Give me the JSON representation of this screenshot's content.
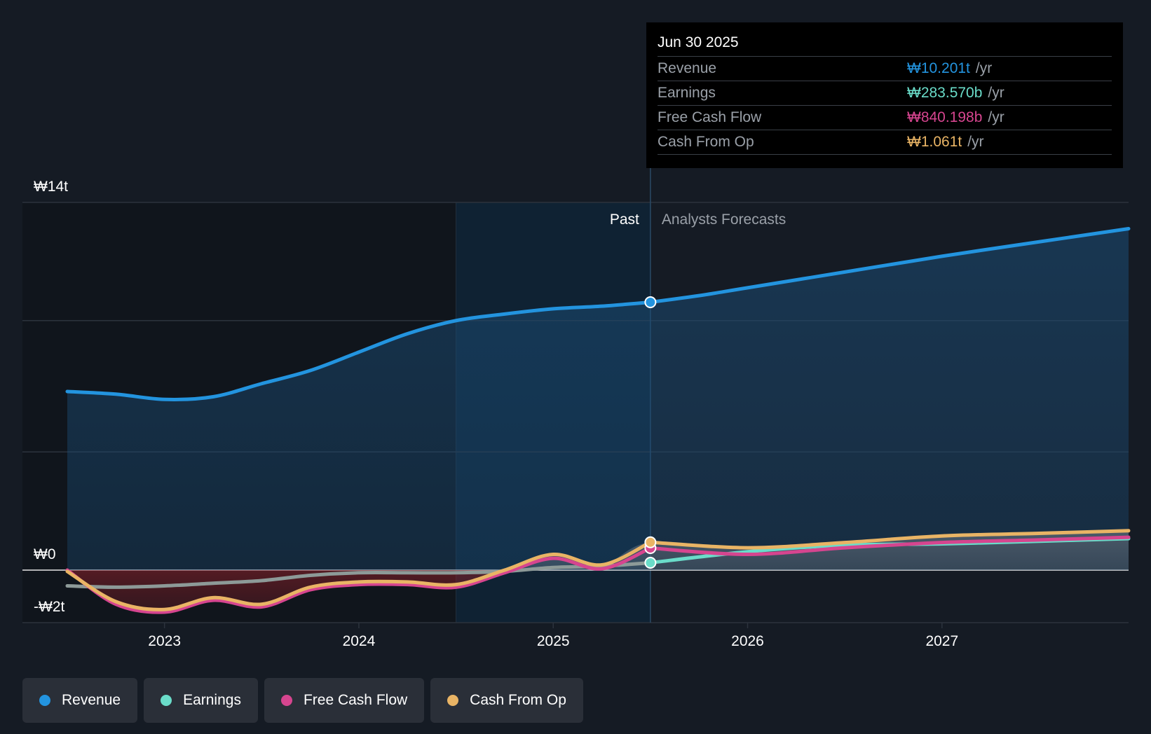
{
  "chart_data": {
    "type": "line",
    "y_unit": "₩ trillion",
    "y_tick_labels": [
      "₩14t",
      "₩0",
      "-₩2t"
    ],
    "x_tick_labels": [
      "2023",
      "2024",
      "2025",
      "2026",
      "2027"
    ],
    "xlim": [
      2022.5,
      2027.96
    ],
    "ylim": [
      -2,
      14
    ],
    "divider_x": 2025.5,
    "highlight_start_x": 2024.5,
    "past_label": "Past",
    "forecast_label": "Analysts Forecasts",
    "series": [
      {
        "name": "Revenue",
        "color": "#2394df",
        "points": [
          [
            2022.5,
            6.8
          ],
          [
            2022.75,
            6.7
          ],
          [
            2023.0,
            6.5
          ],
          [
            2023.25,
            6.6
          ],
          [
            2023.5,
            7.1
          ],
          [
            2023.75,
            7.6
          ],
          [
            2024.0,
            8.3
          ],
          [
            2024.25,
            9.0
          ],
          [
            2024.5,
            9.5
          ],
          [
            2024.75,
            9.75
          ],
          [
            2025.0,
            9.95
          ],
          [
            2025.25,
            10.05
          ],
          [
            2025.5,
            10.2
          ],
          [
            2025.75,
            10.45
          ],
          [
            2026.0,
            10.75
          ],
          [
            2026.5,
            11.35
          ],
          [
            2027.0,
            11.95
          ],
          [
            2027.5,
            12.5
          ],
          [
            2027.96,
            13.0
          ]
        ]
      },
      {
        "name": "Earnings",
        "color": "#6adcc9",
        "points": [
          [
            2022.5,
            -0.6
          ],
          [
            2022.75,
            -0.65
          ],
          [
            2023.0,
            -0.6
          ],
          [
            2023.25,
            -0.5
          ],
          [
            2023.5,
            -0.4
          ],
          [
            2023.75,
            -0.2
          ],
          [
            2024.0,
            -0.1
          ],
          [
            2024.25,
            -0.1
          ],
          [
            2024.5,
            -0.1
          ],
          [
            2024.75,
            -0.05
          ],
          [
            2025.0,
            0.1
          ],
          [
            2025.25,
            0.15
          ],
          [
            2025.5,
            0.28
          ],
          [
            2026.0,
            0.7
          ],
          [
            2026.5,
            0.95
          ],
          [
            2027.0,
            1.0
          ],
          [
            2027.5,
            1.1
          ],
          [
            2027.96,
            1.2
          ]
        ]
      },
      {
        "name": "Free Cash Flow",
        "color": "#d6458f",
        "points": [
          [
            2022.5,
            0.0
          ],
          [
            2022.75,
            -1.3
          ],
          [
            2023.0,
            -1.6
          ],
          [
            2023.25,
            -1.15
          ],
          [
            2023.5,
            -1.4
          ],
          [
            2023.75,
            -0.75
          ],
          [
            2024.0,
            -0.55
          ],
          [
            2024.25,
            -0.55
          ],
          [
            2024.5,
            -0.65
          ],
          [
            2024.75,
            -0.1
          ],
          [
            2025.0,
            0.45
          ],
          [
            2025.25,
            0.05
          ],
          [
            2025.5,
            0.84
          ],
          [
            2026.0,
            0.6
          ],
          [
            2026.5,
            0.85
          ],
          [
            2027.0,
            1.05
          ],
          [
            2027.5,
            1.15
          ],
          [
            2027.96,
            1.25
          ]
        ]
      },
      {
        "name": "Cash From Op",
        "color": "#e9b465",
        "points": [
          [
            2022.5,
            -0.05
          ],
          [
            2022.75,
            -1.2
          ],
          [
            2023.0,
            -1.5
          ],
          [
            2023.25,
            -1.05
          ],
          [
            2023.5,
            -1.3
          ],
          [
            2023.75,
            -0.65
          ],
          [
            2024.0,
            -0.45
          ],
          [
            2024.25,
            -0.45
          ],
          [
            2024.5,
            -0.55
          ],
          [
            2024.75,
            0.0
          ],
          [
            2025.0,
            0.6
          ],
          [
            2025.25,
            0.2
          ],
          [
            2025.5,
            1.06
          ],
          [
            2026.0,
            0.85
          ],
          [
            2026.5,
            1.05
          ],
          [
            2027.0,
            1.3
          ],
          [
            2027.5,
            1.4
          ],
          [
            2027.96,
            1.5
          ]
        ]
      }
    ]
  },
  "tooltip": {
    "date": "Jun 30 2025",
    "rows": [
      {
        "label": "Revenue",
        "value": "₩10.201t",
        "unit": "/yr",
        "color": "#2394df"
      },
      {
        "label": "Earnings",
        "value": "₩283.570b",
        "unit": "/yr",
        "color": "#6adcc9"
      },
      {
        "label": "Free Cash Flow",
        "value": "₩840.198b",
        "unit": "/yr",
        "color": "#d6458f"
      },
      {
        "label": "Cash From Op",
        "value": "₩1.061t",
        "unit": "/yr",
        "color": "#e9b465"
      }
    ]
  },
  "legend": [
    {
      "label": "Revenue",
      "color": "#2394df"
    },
    {
      "label": "Earnings",
      "color": "#6adcc9"
    },
    {
      "label": "Free Cash Flow",
      "color": "#d6458f"
    },
    {
      "label": "Cash From Op",
      "color": "#e9b465"
    }
  ]
}
